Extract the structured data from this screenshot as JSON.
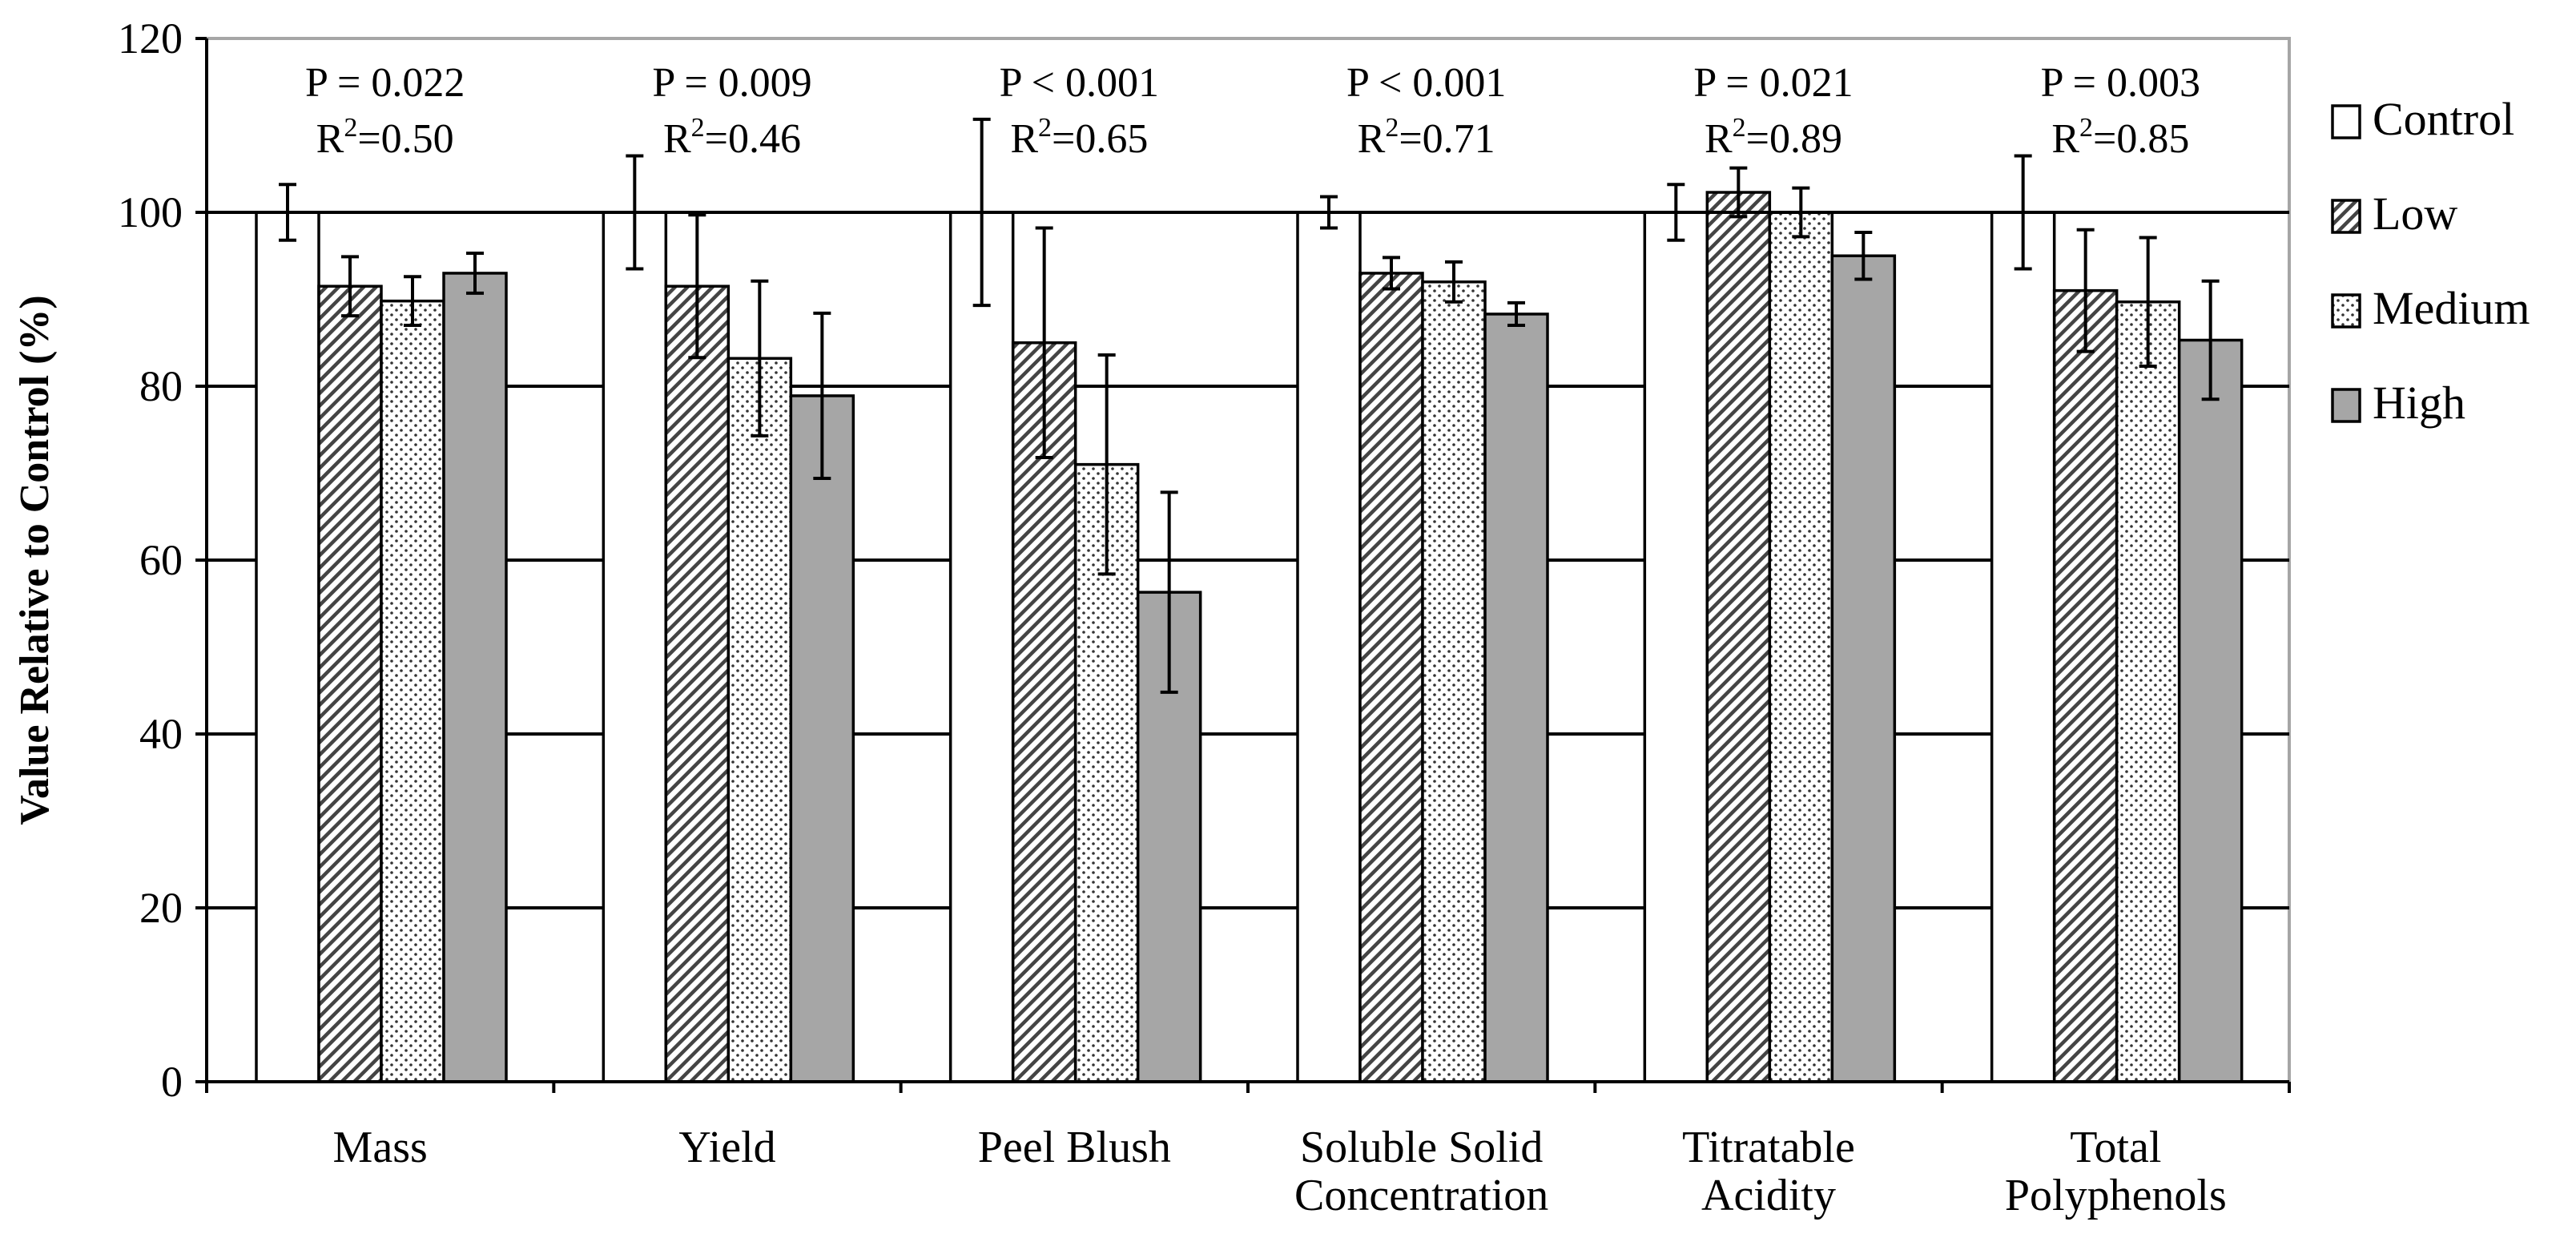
{
  "chart_data": {
    "type": "bar",
    "title": "",
    "xlabel": "",
    "ylabel": "Value Relative to Control (%)",
    "ylim": [
      0,
      120
    ],
    "yticks": [
      "0",
      "20",
      "40",
      "60",
      "80",
      "100",
      "120"
    ],
    "grid": "horizontal",
    "reference_line": 100,
    "legend_position": "right",
    "categories": [
      [
        "Mass"
      ],
      [
        "Yield"
      ],
      [
        "Peel Blush"
      ],
      [
        "Soluble Solid",
        "Concentration"
      ],
      [
        "Titratable",
        "Acidity"
      ],
      [
        "Total",
        "Polyphenols"
      ]
    ],
    "series": [
      {
        "name": "Control",
        "fill": "white",
        "values": [
          100,
          100,
          100,
          100,
          100,
          100
        ],
        "errors": [
          3.2,
          6.5,
          10.7,
          1.8,
          3.2,
          6.5
        ]
      },
      {
        "name": "Low",
        "fill": "hatched",
        "values": [
          91.5,
          91.5,
          85,
          93,
          102.3,
          91
        ],
        "errors": [
          3.4,
          8.2,
          13.2,
          1.8,
          2.8,
          7.0
        ]
      },
      {
        "name": "Medium",
        "fill": "dotted",
        "values": [
          89.8,
          83.2,
          71,
          92,
          100,
          89.7
        ],
        "errors": [
          2.8,
          8.9,
          12.6,
          2.3,
          2.8,
          7.4
        ]
      },
      {
        "name": "High",
        "fill": "gray",
        "values": [
          93,
          78.9,
          56.3,
          88.3,
          95,
          85.3
        ],
        "errors": [
          2.3,
          9.5,
          11.5,
          1.3,
          2.7,
          6.8
        ]
      }
    ],
    "annotations": [
      {
        "p": "P = 0.022",
        "r2_label": "R",
        "r2_sup": "2",
        "r2_value": "=0.50"
      },
      {
        "p": "P = 0.009",
        "r2_label": "R",
        "r2_sup": "2",
        "r2_value": "=0.46"
      },
      {
        "p": "P < 0.001",
        "r2_label": "R",
        "r2_sup": "2",
        "r2_value": "=0.65"
      },
      {
        "p": "P < 0.001",
        "r2_label": "R",
        "r2_sup": "2",
        "r2_value": "=0.71"
      },
      {
        "p": "P = 0.021",
        "r2_label": "R",
        "r2_sup": "2",
        "r2_value": "=0.89"
      },
      {
        "p": "P = 0.003",
        "r2_label": "R",
        "r2_sup": "2",
        "r2_value": "=0.85"
      }
    ]
  }
}
